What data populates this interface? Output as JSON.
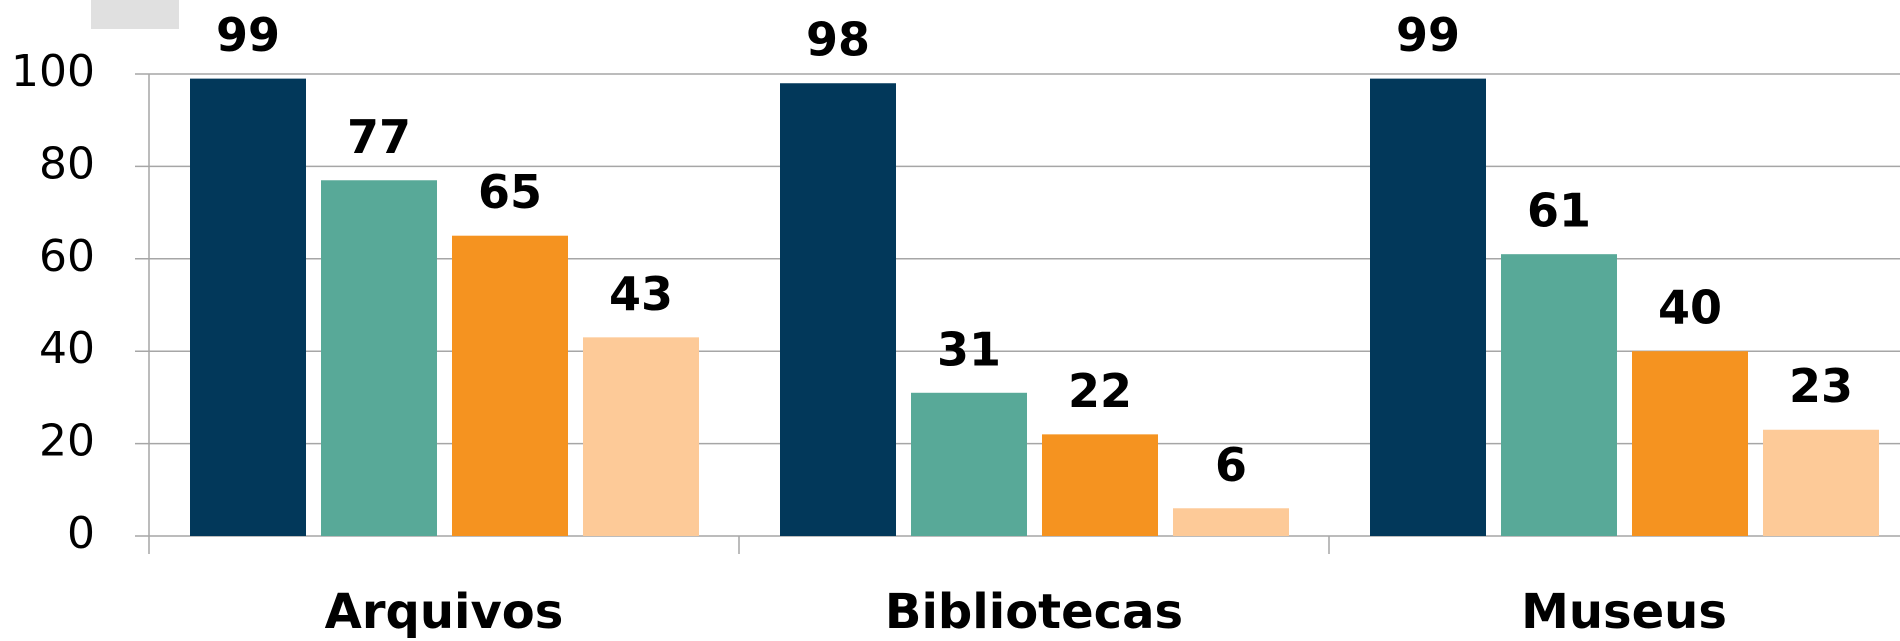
{
  "chart_data": {
    "type": "bar",
    "categories": [
      "Arquivos",
      "Bibliotecas",
      "Museus"
    ],
    "series": [
      {
        "color": "#02385a",
        "values": [
          99,
          98,
          99
        ]
      },
      {
        "color": "#58a998",
        "values": [
          77,
          31,
          61
        ]
      },
      {
        "color": "#f59320",
        "values": [
          65,
          22,
          40
        ]
      },
      {
        "color": "#fdca98",
        "values": [
          43,
          6,
          23
        ]
      }
    ],
    "ylim": [
      0,
      100
    ],
    "yticks": [
      0,
      20,
      40,
      60,
      80,
      100
    ],
    "grid": true
  }
}
